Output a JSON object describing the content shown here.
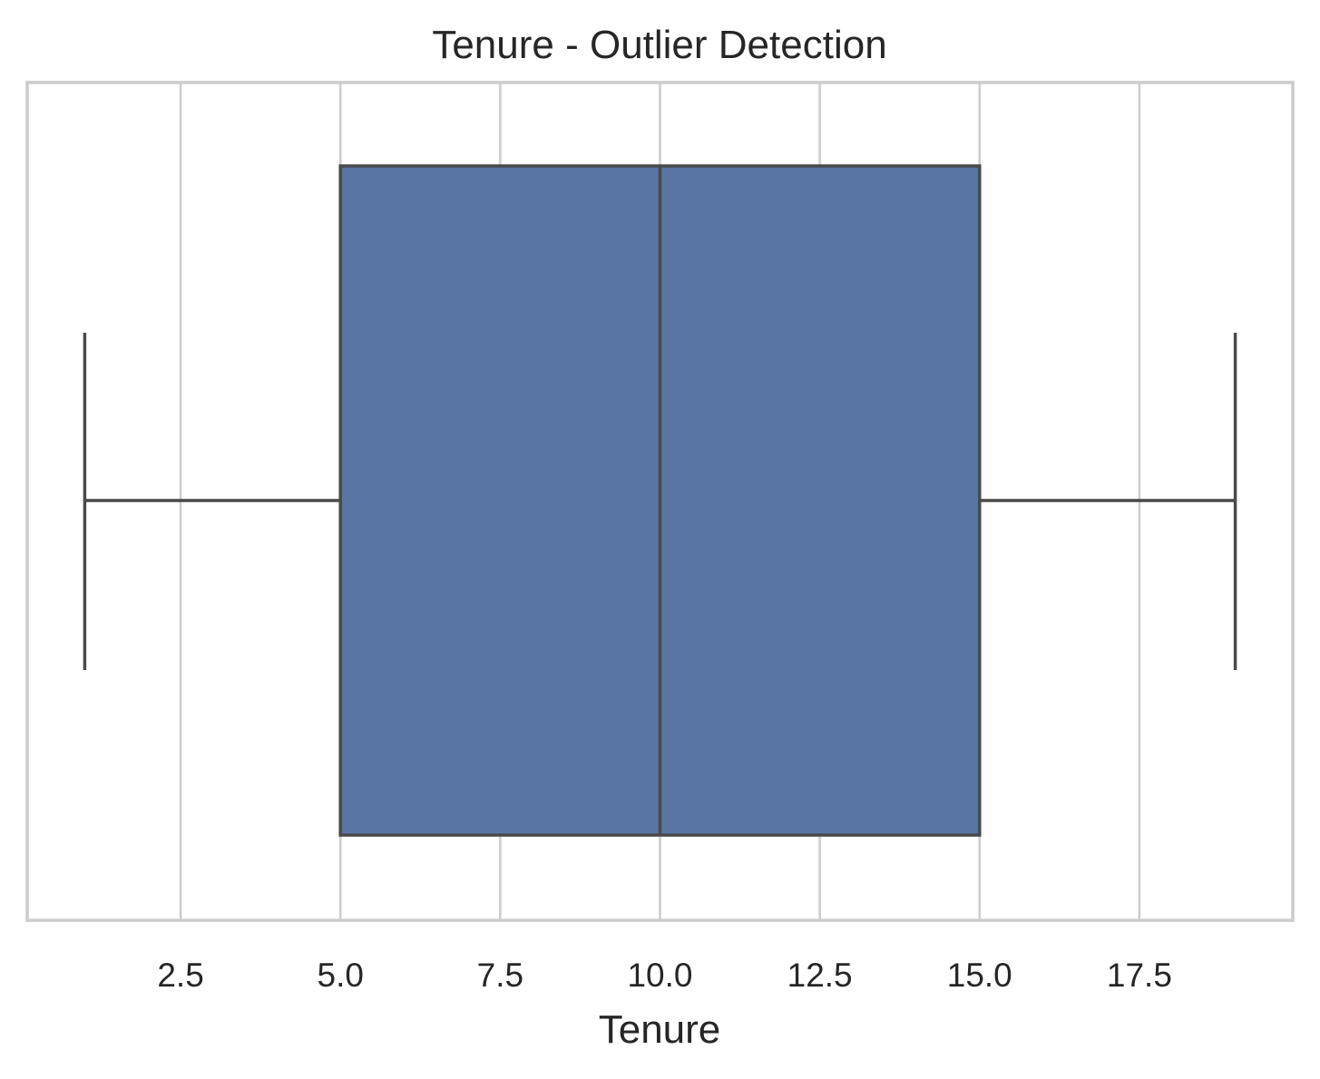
{
  "chart_data": {
    "type": "box",
    "title": "Tenure - Outlier Detection",
    "xlabel": "Tenure",
    "ylabel": "",
    "orientation": "horizontal",
    "xlim": [
      0.1,
      19.9
    ],
    "xticks": [
      2.5,
      5.0,
      7.5,
      10.0,
      12.5,
      15.0,
      17.5
    ],
    "xtick_labels": [
      "2.5",
      "5.0",
      "7.5",
      "10.0",
      "12.5",
      "15.0",
      "17.5"
    ],
    "grid": true,
    "stats": {
      "min": 1,
      "q1": 5,
      "median": 10,
      "q3": 15,
      "max": 19,
      "outliers": []
    },
    "colors": {
      "box_fill": "#5975a4",
      "line": "#4a4a4a",
      "grid": "#cccccc",
      "frame": "#cccccc",
      "text": "#262626"
    }
  }
}
